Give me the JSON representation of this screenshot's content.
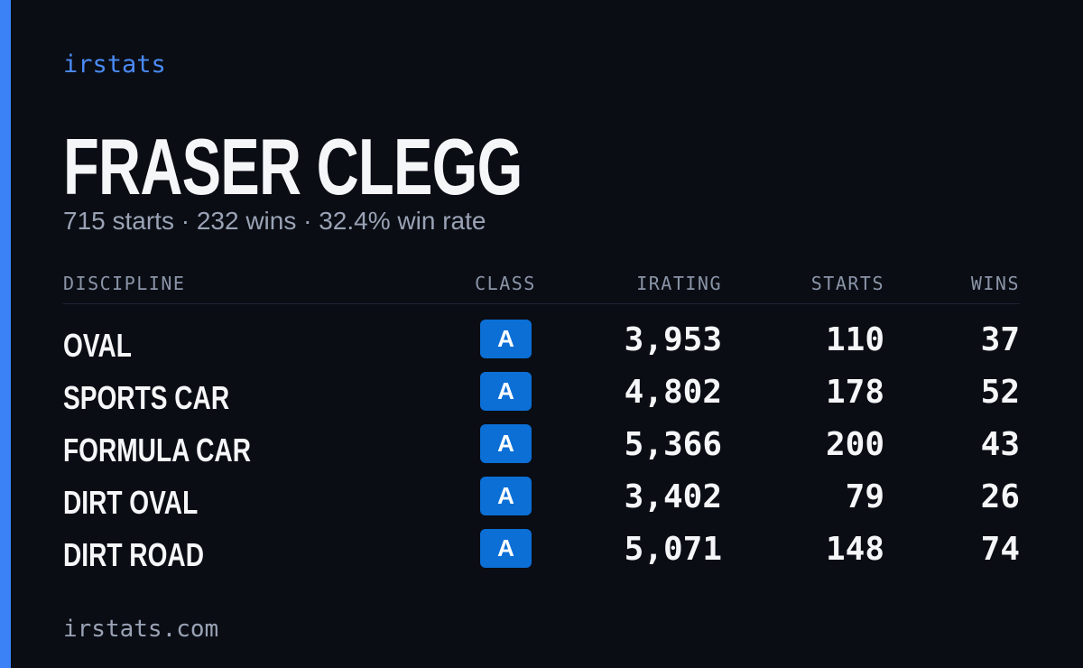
{
  "brand": "irstats",
  "driver": {
    "name": "FRASER CLEGG",
    "summary": "715 starts · 232 wins · 32.4% win rate"
  },
  "table": {
    "headers": [
      "DISCIPLINE",
      "CLASS",
      "IRATING",
      "STARTS",
      "WINS"
    ],
    "rows": [
      [
        "OVAL",
        "A",
        "3,953",
        "110",
        "37"
      ],
      [
        "SPORTS CAR",
        "A",
        "4,802",
        "178",
        "52"
      ],
      [
        "FORMULA CAR",
        "A",
        "5,366",
        "200",
        "43"
      ],
      [
        "DIRT OVAL",
        "A",
        "3,402",
        "79",
        "26"
      ],
      [
        "DIRT ROAD",
        "A",
        "5,071",
        "148",
        "74"
      ]
    ]
  },
  "footer": "irstats.com"
}
